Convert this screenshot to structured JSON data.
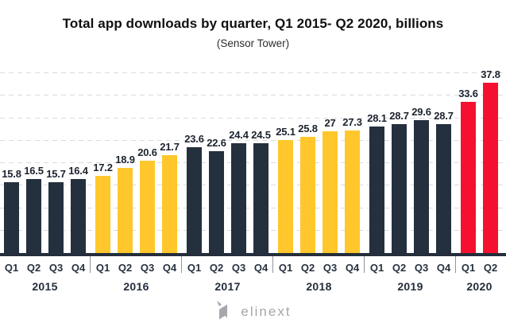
{
  "title": "Total app downloads by quarter, Q1 2015- Q2 2020, billions",
  "subtitle": "(Sensor Tower)",
  "logo": {
    "brand_text": "elinext",
    "icon": "elinext-n-logo-icon"
  },
  "colors": {
    "dark_navy": "#25303e",
    "yellow": "#ffc72b",
    "red": "#f5102f",
    "gridline": "#d8dadc",
    "axis": "#242e3c",
    "divider": "#8f959d",
    "value_label": "#1c232e",
    "logo_gray": "#a6a6ac"
  },
  "chart_data": {
    "type": "bar",
    "title": "Total app downloads by quarter, Q1 2015- Q2 2020, billions",
    "subtitle": "(Sensor Tower)",
    "unit": "billions",
    "ylabel": "",
    "xlabel": "",
    "ylim": [
      0,
      40
    ],
    "gridline_step": 5,
    "grid": "horizontal-dashed",
    "y_axis_labels_visible": false,
    "legend": "none",
    "groups": [
      {
        "year": "2015",
        "color": "dark_navy",
        "quarters": [
          "Q1",
          "Q2",
          "Q3",
          "Q4"
        ],
        "values": [
          15.8,
          16.5,
          15.7,
          16.4
        ]
      },
      {
        "year": "2016",
        "color": "yellow",
        "quarters": [
          "Q1",
          "Q2",
          "Q3",
          "Q4"
        ],
        "values": [
          17.2,
          18.9,
          20.6,
          21.7
        ]
      },
      {
        "year": "2017",
        "color": "dark_navy",
        "quarters": [
          "Q1",
          "Q2",
          "Q3",
          "Q4"
        ],
        "values": [
          23.6,
          22.6,
          24.4,
          24.5
        ]
      },
      {
        "year": "2018",
        "color": "yellow",
        "quarters": [
          "Q1",
          "Q2",
          "Q3",
          "Q4"
        ],
        "values": [
          25.1,
          25.8,
          27,
          27.3
        ]
      },
      {
        "year": "2019",
        "color": "dark_navy",
        "quarters": [
          "Q1",
          "Q2",
          "Q3",
          "Q4"
        ],
        "values": [
          28.1,
          28.7,
          29.6,
          28.7
        ]
      },
      {
        "year": "2020",
        "color": "red",
        "quarters": [
          "Q1",
          "Q2"
        ],
        "values": [
          33.6,
          37.8
        ]
      }
    ]
  }
}
